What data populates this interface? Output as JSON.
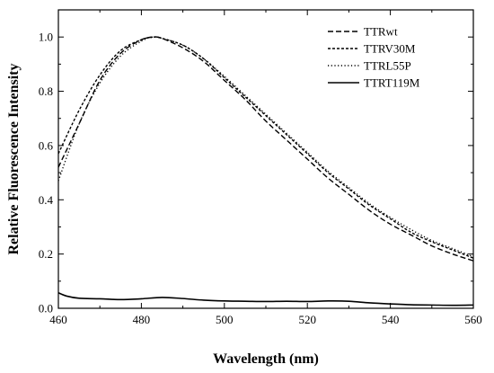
{
  "chart_data": {
    "type": "line",
    "title": "",
    "xlabel": "Wavelength (nm)",
    "ylabel": "Relative Fluorescence Intensity",
    "xlim": [
      460,
      560
    ],
    "ylim": [
      0.0,
      1.1
    ],
    "xticks": [
      460,
      480,
      500,
      520,
      540,
      560
    ],
    "yticks": [
      0.0,
      0.2,
      0.4,
      0.6,
      0.8,
      1.0
    ],
    "xtick_labels": [
      "460",
      "480",
      "500",
      "520",
      "540",
      "560"
    ],
    "ytick_labels": [
      "0.0",
      "0.2",
      "0.4",
      "0.6",
      "0.8",
      "1.0"
    ],
    "grid": false,
    "legend_position": "top-right",
    "series": [
      {
        "name": "TTRwt",
        "line_style": "dashed",
        "x": [
          460,
          465,
          470,
          475,
          480,
          483,
          485,
          490,
          495,
          500,
          505,
          510,
          515,
          520,
          525,
          530,
          535,
          540,
          545,
          550,
          555,
          560
        ],
        "y": [
          0.52,
          0.68,
          0.84,
          0.94,
          0.99,
          1.0,
          0.995,
          0.96,
          0.91,
          0.84,
          0.77,
          0.69,
          0.62,
          0.55,
          0.48,
          0.42,
          0.36,
          0.31,
          0.27,
          0.23,
          0.2,
          0.175
        ]
      },
      {
        "name": "TTRV30M",
        "line_style": "short-dashed",
        "x": [
          460,
          465,
          470,
          475,
          480,
          483,
          485,
          490,
          495,
          500,
          505,
          510,
          515,
          520,
          525,
          530,
          535,
          540,
          545,
          550,
          555,
          560
        ],
        "y": [
          0.57,
          0.73,
          0.86,
          0.95,
          0.99,
          1.0,
          0.995,
          0.97,
          0.92,
          0.85,
          0.78,
          0.71,
          0.64,
          0.57,
          0.5,
          0.44,
          0.38,
          0.33,
          0.28,
          0.245,
          0.215,
          0.185
        ]
      },
      {
        "name": "TTRL55P",
        "line_style": "dotted",
        "x": [
          460,
          465,
          470,
          475,
          480,
          483,
          485,
          490,
          495,
          500,
          505,
          510,
          515,
          520,
          525,
          530,
          535,
          540,
          545,
          550,
          555,
          560
        ],
        "y": [
          0.47,
          0.68,
          0.83,
          0.93,
          0.985,
          1.0,
          0.995,
          0.97,
          0.92,
          0.855,
          0.785,
          0.715,
          0.645,
          0.575,
          0.505,
          0.445,
          0.385,
          0.335,
          0.29,
          0.25,
          0.22,
          0.19
        ]
      },
      {
        "name": "TTRT119M",
        "line_style": "solid",
        "x": [
          460,
          462,
          465,
          470,
          475,
          480,
          485,
          490,
          495,
          500,
          505,
          510,
          515,
          520,
          525,
          530,
          535,
          540,
          545,
          550,
          555,
          560
        ],
        "y": [
          0.057,
          0.045,
          0.037,
          0.035,
          0.032,
          0.035,
          0.04,
          0.036,
          0.03,
          0.027,
          0.026,
          0.025,
          0.026,
          0.025,
          0.027,
          0.026,
          0.02,
          0.016,
          0.013,
          0.012,
          0.011,
          0.012
        ]
      }
    ]
  }
}
